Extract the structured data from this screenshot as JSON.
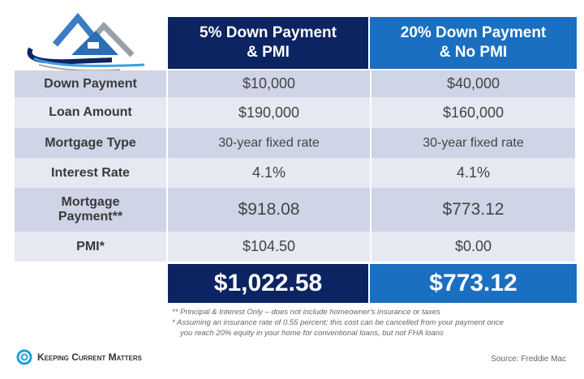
{
  "header": {
    "col1": [
      "5% Down Payment",
      "& PMI"
    ],
    "col2": [
      "20% Down Payment",
      "& No PMI"
    ]
  },
  "rows": [
    {
      "label": "Down Payment",
      "v1": "$10,000",
      "v2": "$40,000"
    },
    {
      "label": "Loan Amount",
      "v1": "$190,000",
      "v2": "$160,000"
    },
    {
      "label": "Mortgage Type",
      "v1": "30-year fixed rate",
      "v2": "30-year fixed rate"
    },
    {
      "label": "Interest Rate",
      "v1": "4.1%",
      "v2": "4.1%"
    },
    {
      "label": [
        "Mortgage",
        "Payment**"
      ],
      "v1": "$918.08",
      "v2": "$773.12"
    },
    {
      "label": "PMI*",
      "v1": "$104.50",
      "v2": "$0.00"
    }
  ],
  "totals": {
    "v1": "$1,022.58",
    "v2": "$773.12"
  },
  "notes": [
    "** Principal & Interest Only – does not include homeowner's insurance or taxes",
    "*  Assuming an insurance rate of 0.55 percent; this cost can be cancelled from your payment once",
    "you reach 20% equity in your home for conventional loans, but not FHA loans"
  ],
  "brand": "Keeping Current Matters",
  "source": "Source: Freddie Mac",
  "colors": {
    "dark_navy": "#0c2461",
    "blue": "#1b6fc0",
    "row_dark": "#cfd4e6",
    "row_light": "#e6e8f2"
  }
}
